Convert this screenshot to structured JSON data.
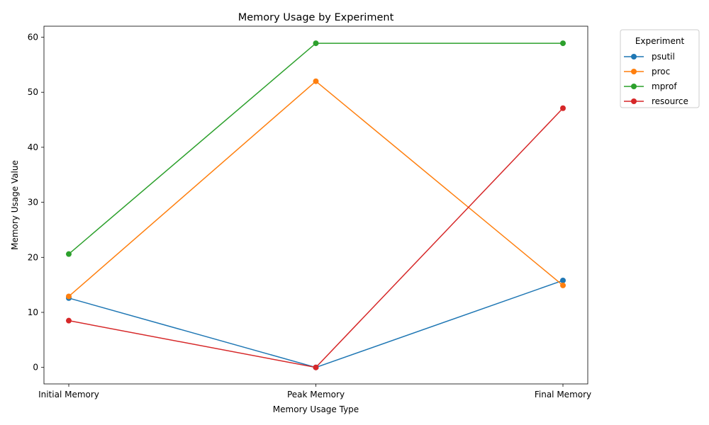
{
  "chart_data": {
    "type": "line",
    "title": "Memory Usage by Experiment",
    "xlabel": "Memory Usage Type",
    "ylabel": "Memory Usage Value",
    "categories": [
      "Initial Memory",
      "Peak Memory",
      "Final Memory"
    ],
    "ylim": [
      -3,
      62
    ],
    "yticks": [
      0,
      10,
      20,
      30,
      40,
      50,
      60
    ],
    "grid": false,
    "legend": {
      "title": "Experiment",
      "placement": "outside top-right"
    },
    "series": [
      {
        "name": "psutil",
        "color": "#1f77b4",
        "values": [
          12.6,
          0.0,
          15.8
        ]
      },
      {
        "name": "proc",
        "color": "#ff7f0e",
        "values": [
          12.9,
          52.0,
          14.9
        ]
      },
      {
        "name": "mprof",
        "color": "#2ca02c",
        "values": [
          20.6,
          58.9,
          58.9
        ]
      },
      {
        "name": "resource",
        "color": "#d62728",
        "values": [
          8.5,
          0.0,
          47.1
        ]
      }
    ]
  }
}
